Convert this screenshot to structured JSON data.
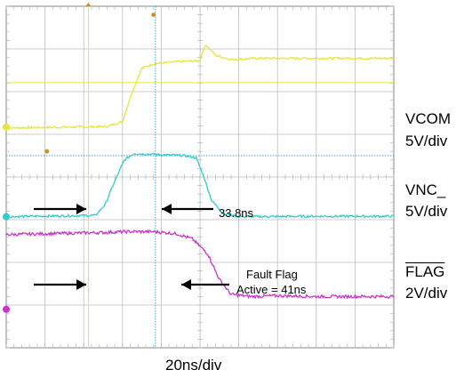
{
  "chart_data": {
    "type": "line",
    "grid": true,
    "x_divisions": 10,
    "y_divisions": 8,
    "x_scale": "20ns/div",
    "series": [
      {
        "name": "VCOM",
        "scale": "5V/div",
        "color": "#e6e63c",
        "points": [
          [
            0,
            5.15
          ],
          [
            2.6,
            5.18
          ],
          [
            3.0,
            5.3
          ],
          [
            3.25,
            6.0
          ],
          [
            3.5,
            6.55
          ],
          [
            3.8,
            6.65
          ],
          [
            4.4,
            6.7
          ],
          [
            5.0,
            6.72
          ],
          [
            5.05,
            6.9
          ],
          [
            5.15,
            7.1
          ],
          [
            5.4,
            6.85
          ],
          [
            5.8,
            6.75
          ],
          [
            6.5,
            6.78
          ],
          [
            8,
            6.78
          ],
          [
            10,
            6.78
          ]
        ]
      },
      {
        "name": "VNC_",
        "scale": "5V/div",
        "color": "#33cccc",
        "points": [
          [
            0,
            3.07
          ],
          [
            2.3,
            3.1
          ],
          [
            2.55,
            3.35
          ],
          [
            2.8,
            3.9
          ],
          [
            3.05,
            4.4
          ],
          [
            3.3,
            4.55
          ],
          [
            4.6,
            4.5
          ],
          [
            4.9,
            4.45
          ],
          [
            5.1,
            4.0
          ],
          [
            5.3,
            3.45
          ],
          [
            5.6,
            3.15
          ],
          [
            6,
            3.07
          ],
          [
            8,
            3.08
          ],
          [
            10,
            3.08
          ]
        ]
      },
      {
        "name": "FLAG",
        "scale": "2V/div",
        "color": "#cc33cc",
        "points": [
          [
            0,
            2.65
          ],
          [
            1.5,
            2.68
          ],
          [
            2.5,
            2.7
          ],
          [
            3.1,
            2.72
          ],
          [
            3.8,
            2.72
          ],
          [
            4.4,
            2.67
          ],
          [
            4.8,
            2.55
          ],
          [
            5.2,
            2.2
          ],
          [
            5.5,
            1.6
          ],
          [
            5.8,
            1.25
          ],
          [
            6.3,
            1.2
          ],
          [
            7,
            1.22
          ],
          [
            8,
            1.2
          ],
          [
            10,
            1.2
          ]
        ]
      }
    ],
    "labels": [
      {
        "text": "VCOM"
      },
      {
        "text": "5V/div"
      },
      {
        "text": "VNC_"
      },
      {
        "text": "5V/div"
      },
      {
        "text": "FLAG"
      },
      {
        "text": "2V/div"
      }
    ],
    "annotations": [
      {
        "text": "33.8ns"
      },
      {
        "text": "Fault Flag"
      },
      {
        "text": "Active = 41ns"
      }
    ],
    "xlabel": "20ns/div"
  },
  "colors": {
    "grid": "#bdbdbd",
    "border": "#9a9a9a",
    "cursor_v": "#e6e63c",
    "cursor_h": "#33aacc",
    "arrow": "#000000"
  }
}
